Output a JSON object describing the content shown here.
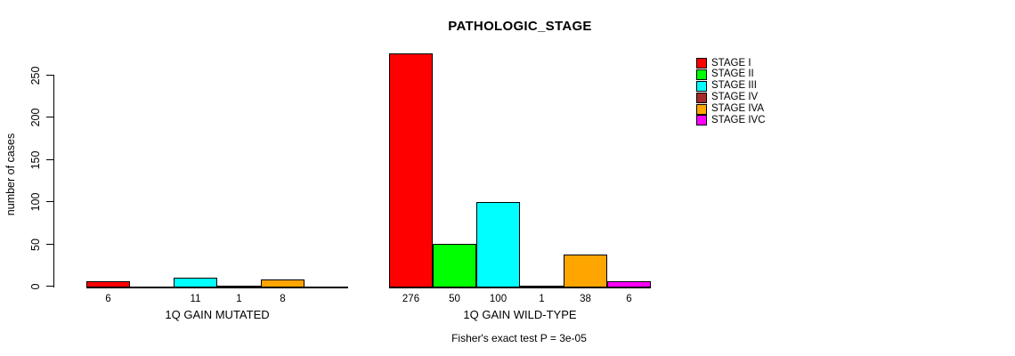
{
  "chart_data": {
    "type": "bar",
    "title": "PATHOLOGIC_STAGE",
    "ylabel": "number of cases",
    "xlabel": "",
    "ylim": [
      0,
      250
    ],
    "yticks": [
      0,
      50,
      100,
      150,
      200,
      250
    ],
    "grid": false,
    "legend_position": "right",
    "categories": [
      "1Q GAIN MUTATED",
      "1Q GAIN WILD-TYPE"
    ],
    "series": [
      {
        "name": "STAGE I",
        "color": "#ff0000",
        "values": [
          6,
          276
        ]
      },
      {
        "name": "STAGE II",
        "color": "#00ff00",
        "values": [
          0,
          50
        ]
      },
      {
        "name": "STAGE III",
        "color": "#00ffff",
        "values": [
          11,
          100
        ]
      },
      {
        "name": "STAGE IV",
        "color": "#a52a2a",
        "values": [
          1,
          1
        ]
      },
      {
        "name": "STAGE IVA",
        "color": "#ffa500",
        "values": [
          8,
          38
        ]
      },
      {
        "name": "STAGE IVC",
        "color": "#ff00ff",
        "values": [
          0,
          6
        ]
      }
    ],
    "bar_value_labels_visible": true,
    "zero_values_hidden": true,
    "annotation": "Fisher's exact test P = 3e-05"
  }
}
